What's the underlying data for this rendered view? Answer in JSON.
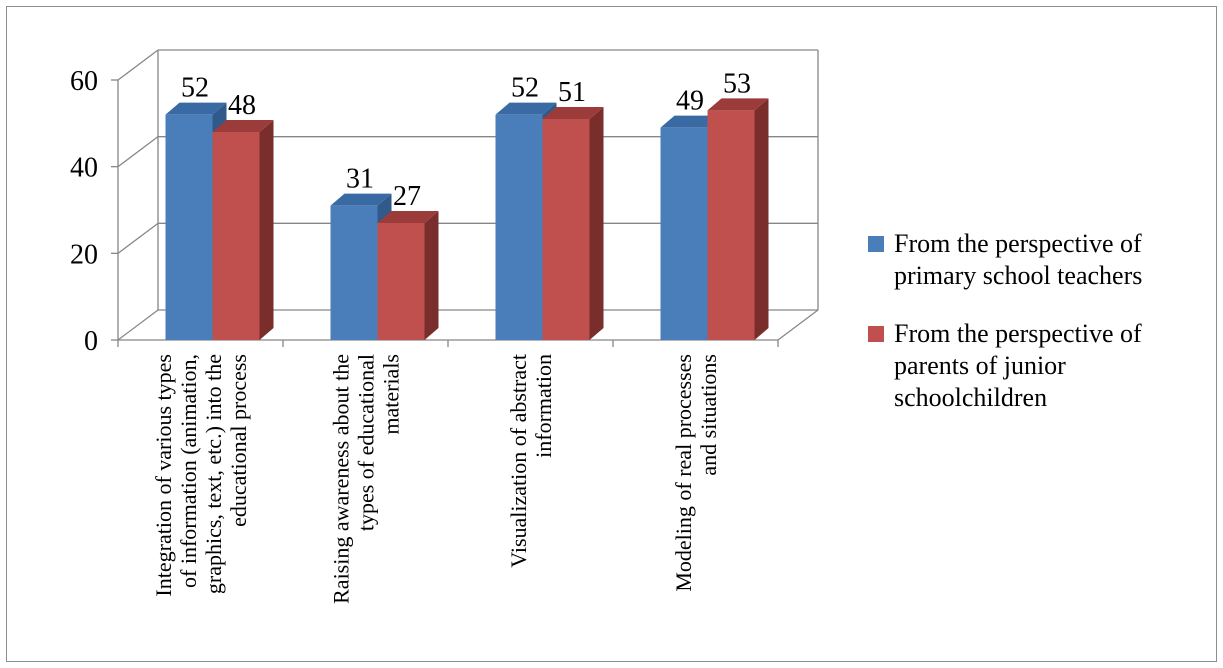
{
  "chart_data": {
    "type": "bar",
    "categories": [
      "Integration of various types of information (animation, graphics, text, etc.) into the educational process",
      "Raising awareness about the types of educational materials",
      "Visualization of abstract information",
      "Modeling of real processes and situations"
    ],
    "category_lines": [
      [
        "Integration of various types",
        "of information (animation,",
        "graphics, text, etc.) into the",
        "educational process"
      ],
      [
        "Raising awareness about the",
        "types of educational",
        "materials"
      ],
      [
        "Visualization of abstract",
        "information"
      ],
      [
        "Modeling of real processes",
        "and situations"
      ]
    ],
    "series": [
      {
        "name": "From the perspective of primary school teachers",
        "name_lines": [
          "From the perspective of",
          "primary school teachers"
        ],
        "color": "#4a7ebb",
        "side_color": "#2f5a8a",
        "top_color": "#3a6aa3",
        "values": [
          52,
          31,
          52,
          49
        ]
      },
      {
        "name": "From the perspective of parents of junior schoolchildren",
        "name_lines": [
          "From the perspective of",
          "parents of junior",
          "schoolchildren"
        ],
        "color": "#c0504d",
        "side_color": "#7a2e2c",
        "top_color": "#9c3c3a",
        "values": [
          48,
          27,
          51,
          53
        ]
      }
    ],
    "y_ticks": [
      0,
      20,
      40,
      60
    ],
    "ylim": [
      0,
      60
    ],
    "grid": true,
    "legend": "right"
  }
}
